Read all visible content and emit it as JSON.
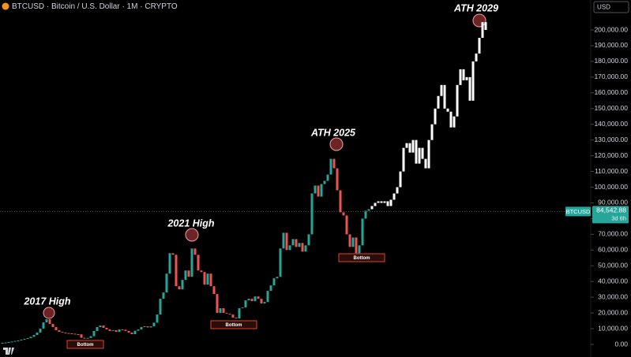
{
  "header": {
    "title": "BTCUSD · Bitcoin / U.S. Dollar · 1M · CRYPTO",
    "currency": "USD"
  },
  "chart_data": {
    "type": "candlestick",
    "ylim": [
      -8020,
      219050
    ],
    "yticks": [
      {
        "value": 0,
        "label": "0.00"
      },
      {
        "value": 10000,
        "label": "10,000.00"
      },
      {
        "value": 20000,
        "label": "20,000.00"
      },
      {
        "value": 30000,
        "label": "30,000.00"
      },
      {
        "value": 40000,
        "label": "40,000.00"
      },
      {
        "value": 50000,
        "label": "50,000.00"
      },
      {
        "value": 60000,
        "label": "60,000.00"
      },
      {
        "value": 70000,
        "label": "70,000.00"
      },
      {
        "value": 80000,
        "label": "80,000.00"
      },
      {
        "value": 90000,
        "label": "90,000.00"
      },
      {
        "value": 100000,
        "label": "100,000.00"
      },
      {
        "value": 110000,
        "label": "110,000.00"
      },
      {
        "value": 120000,
        "label": "120,000.00"
      },
      {
        "value": 130000,
        "label": "130,000.00"
      },
      {
        "value": 140000,
        "label": "140,000.00"
      },
      {
        "value": 150000,
        "label": "150,000.00"
      },
      {
        "value": 160000,
        "label": "160,000.00"
      },
      {
        "value": 170000,
        "label": "170,000.00"
      },
      {
        "value": 180000,
        "label": "180,000.00"
      },
      {
        "value": 190000,
        "label": "190,000.00"
      },
      {
        "value": 200000,
        "label": "200,000.00"
      }
    ],
    "series": [
      {
        "color": "#26a69a",
        "down_color": "#ef5350",
        "values": [
          1000,
          1200,
          1500,
          1800,
          2200,
          2500,
          3000,
          3500,
          4000,
          4800,
          6000,
          7500,
          10000,
          14000,
          16000,
          13000,
          11000,
          9000,
          8000,
          7500,
          7200,
          7000,
          6800,
          6500,
          6400,
          4200,
          3800,
          4100,
          5200,
          8500,
          11000,
          12000,
          10500,
          9500,
          8500,
          9000,
          8000,
          9500,
          9300,
          8500,
          7500,
          6500,
          8700,
          9500,
          11000,
          11500,
          10800,
          11500,
          13800,
          19000,
          29000,
          33000,
          45000,
          58000,
          57000,
          37000,
          35000,
          41000,
          47000,
          43000,
          61000,
          57000,
          47000,
          46000,
          38000,
          45000,
          37000,
          32000,
          20000,
          23000,
          20000,
          19500,
          19000,
          17000,
          16500,
          23000,
          23500,
          28000,
          29000,
          27500,
          30500,
          29000,
          26000,
          27000,
          34000,
          37500,
          42000,
          43000,
          61000,
          71000,
          60000,
          63000,
          67000,
          62000,
          64500,
          59000,
          63000,
          70000,
          96000,
          101000,
          94000,
          102000,
          104000,
          108000,
          118000,
          112000,
          98000,
          84000,
          82000,
          70000,
          62000,
          68000,
          58000,
          63000,
          80000,
          85000,
          86000
        ]
      },
      {
        "color": "#ffffff",
        "values": [
          88000,
          90000,
          91000,
          90000,
          91000,
          88000,
          92000,
          96000,
          100000,
          110000,
          125000,
          128000,
          122000,
          130000,
          115000,
          125000,
          118000,
          112000,
          130000,
          140000,
          150000,
          158000,
          165000,
          150000,
          148000,
          138000,
          145000,
          165000,
          175000,
          168000,
          170000,
          155000,
          180000,
          185000,
          195000,
          205000,
          200000
        ]
      }
    ],
    "annotations": [
      "2017 High",
      "2021 High",
      "ATH 2025",
      "ATH 2029",
      "Bottom",
      "Bottom",
      "Bottom"
    ],
    "price_line": {
      "value": 84542.88,
      "label": "84,542.88"
    },
    "price_symbol": "BTCUSD",
    "countdown": "3d 6h"
  }
}
